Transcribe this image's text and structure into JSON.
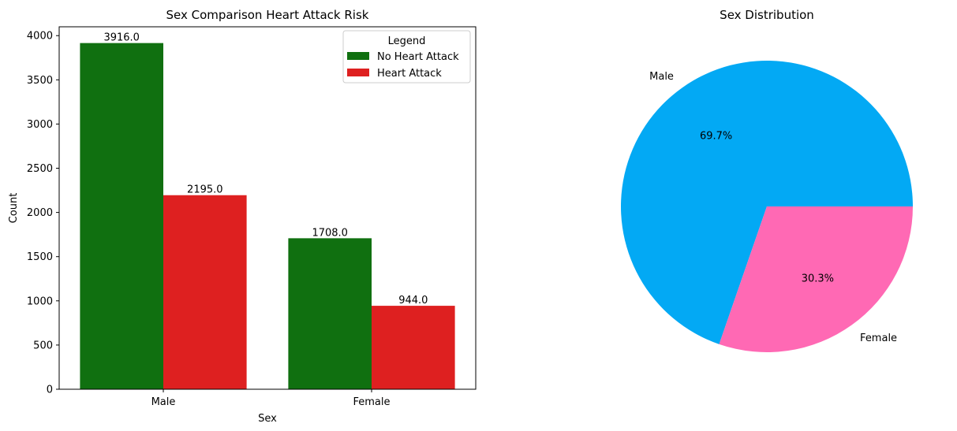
{
  "chart_data": [
    {
      "type": "bar",
      "title": "Sex Comparison Heart Attack Risk",
      "xlabel": "Sex",
      "ylabel": "Count",
      "categories": [
        "Male",
        "Female"
      ],
      "ylim": [
        0,
        4100
      ],
      "yticks": [
        0,
        500,
        1000,
        1500,
        2000,
        2500,
        3000,
        3500,
        4000
      ],
      "grid": false,
      "legend": {
        "title": "Legend",
        "placement": "top-right"
      },
      "series": [
        {
          "name": "No Heart Attack",
          "color": "#107010",
          "values": [
            3916,
            1708
          ],
          "labels": [
            "3916.0",
            "1708.0"
          ]
        },
        {
          "name": "Heart Attack",
          "color": "#de2020",
          "values": [
            2195,
            944
          ],
          "labels": [
            "2195.0",
            "944.0"
          ]
        }
      ]
    },
    {
      "type": "pie",
      "title": "Sex Distribution",
      "slices": [
        {
          "label": "Male",
          "percent": 69.7,
          "pct_label": "69.7%",
          "color": "#03a9f4"
        },
        {
          "label": "Female",
          "percent": 30.3,
          "pct_label": "30.3%",
          "color": "#ff69b4"
        }
      ]
    }
  ]
}
